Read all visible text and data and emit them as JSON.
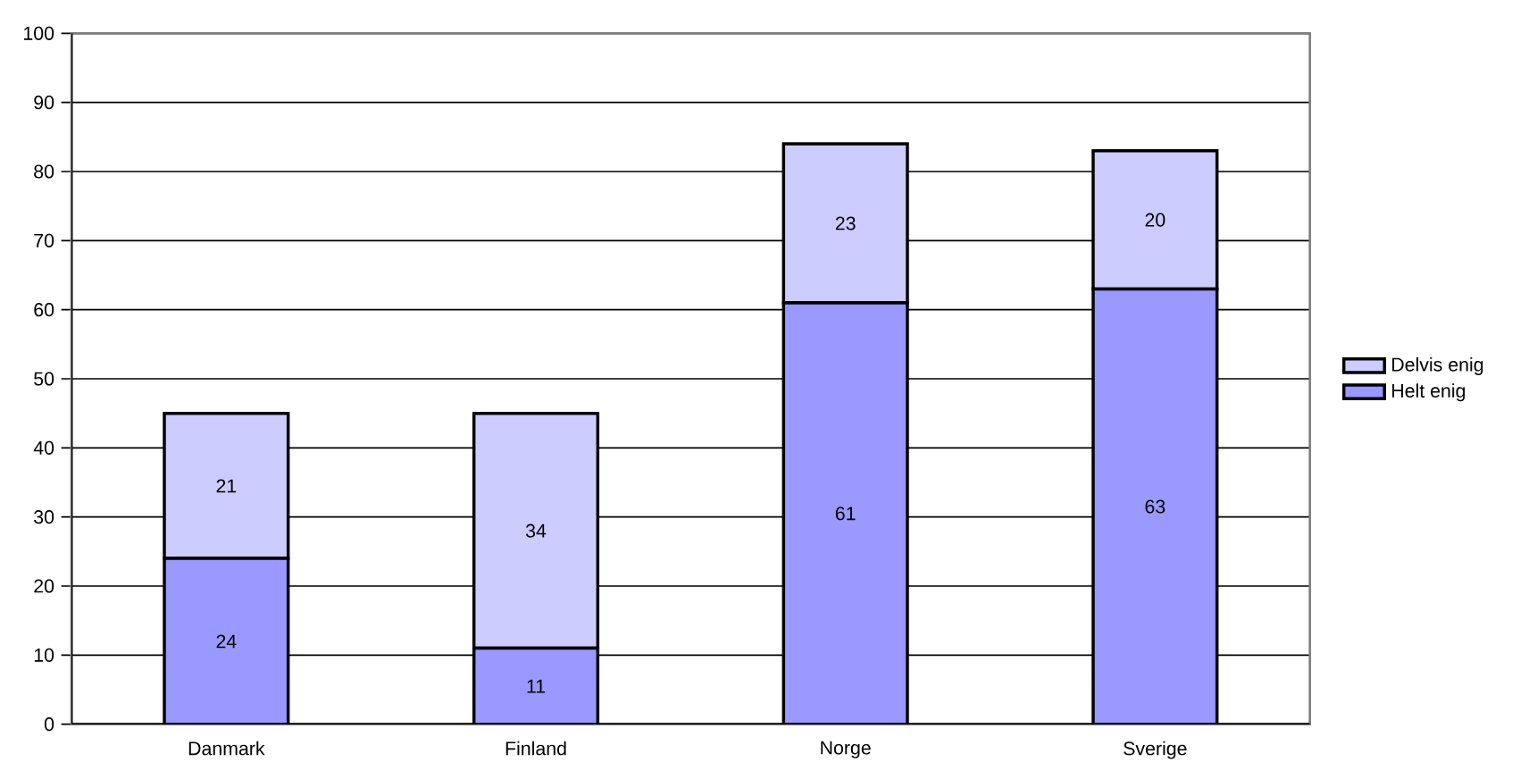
{
  "chart_data": {
    "type": "bar",
    "stacked": true,
    "categories": [
      "Danmark",
      "Finland",
      "Norge",
      "Sverige"
    ],
    "series": [
      {
        "name": "Helt enig",
        "color": "#9999ff",
        "values": [
          24,
          11,
          61,
          63
        ]
      },
      {
        "name": "Delvis enig",
        "color": "#ccccff",
        "values": [
          21,
          34,
          23,
          20
        ]
      }
    ],
    "ylim": [
      0,
      100
    ],
    "yticks": [
      0,
      10,
      20,
      30,
      40,
      50,
      60,
      70,
      80,
      90,
      100
    ],
    "grid": "y",
    "legend": "right",
    "data_labels": true
  }
}
